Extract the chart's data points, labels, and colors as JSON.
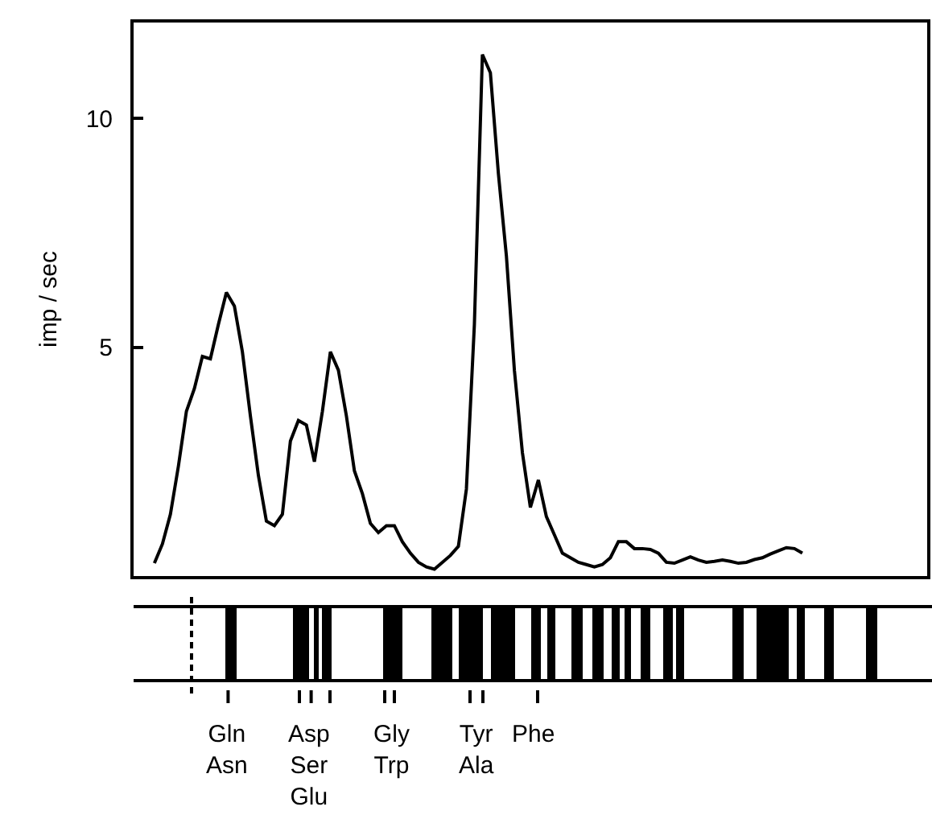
{
  "chart_data": {
    "type": "line",
    "ylabel": "imp / sec",
    "categories": [
      null,
      null,
      null,
      null,
      null,
      null,
      null,
      null,
      null,
      null,
      null,
      null,
      null,
      null,
      null,
      null,
      null,
      null,
      null,
      null,
      null,
      null,
      null,
      null,
      null,
      null,
      null,
      null,
      null,
      null,
      null,
      null,
      null,
      null,
      null,
      null,
      null,
      null,
      null,
      null,
      null,
      null,
      null,
      null,
      null,
      null,
      null,
      null,
      null,
      null,
      null,
      null,
      null,
      null,
      null,
      null,
      null,
      null,
      null,
      null,
      null,
      null,
      null,
      null,
      null,
      null,
      null,
      null,
      null,
      null,
      null,
      null,
      null,
      null,
      null,
      null,
      null,
      null,
      null,
      null,
      null,
      null
    ],
    "series": [
      {
        "color": "#000000",
        "values": [
          0.28,
          0.7,
          1.35,
          2.4,
          3.6,
          4.1,
          4.8,
          4.75,
          5.5,
          6.2,
          5.9,
          4.9,
          3.5,
          2.2,
          1.2,
          1.1,
          1.35,
          2.95,
          3.4,
          3.3,
          2.5,
          3.6,
          4.9,
          4.5,
          3.5,
          2.3,
          1.8,
          1.15,
          0.95,
          1.1,
          1.1,
          0.75,
          0.5,
          0.3,
          0.2,
          0.15,
          0.3,
          0.45,
          0.65,
          1.9,
          5.5,
          11.4,
          11.0,
          8.8,
          7.0,
          4.5,
          2.7,
          1.5,
          2.1,
          1.3,
          0.9,
          0.5,
          0.4,
          0.3,
          0.25,
          0.2,
          0.25,
          0.4,
          0.75,
          0.75,
          0.6,
          0.6,
          0.58,
          0.5,
          0.3,
          0.28,
          0.35,
          0.42,
          0.35,
          0.3,
          0.32,
          0.35,
          0.32,
          0.28,
          0.3,
          0.36,
          0.4,
          0.48,
          0.55,
          0.62,
          0.6,
          0.5
        ]
      }
    ],
    "ylim": [
      0,
      12.1
    ],
    "yticks": [
      5,
      10
    ],
    "marker": "none",
    "line_style": "solid",
    "annotations": [
      "Gln\nAsn",
      "Asp\nSer\nGlu",
      "Gly\nTrp",
      "Tyr\nAla",
      "Phe"
    ]
  }
}
